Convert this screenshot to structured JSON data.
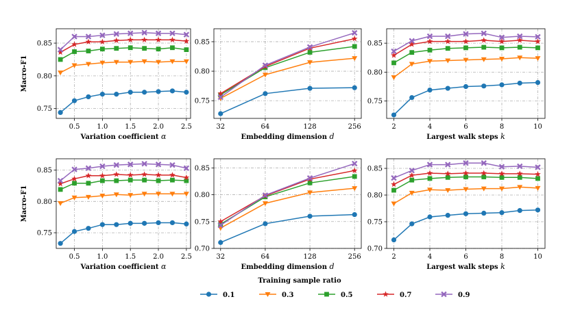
{
  "legend": {
    "title": "Training sample ratio",
    "placement": "bottom-center"
  },
  "series_styles": [
    {
      "name": "0.1",
      "color": "#1f77b4",
      "marker": "circle"
    },
    {
      "name": "0.3",
      "color": "#ff7f0e",
      "marker": "triangle-down"
    },
    {
      "name": "0.5",
      "color": "#2ca02c",
      "marker": "square"
    },
    {
      "name": "0.7",
      "color": "#d62728",
      "marker": "star"
    },
    {
      "name": "0.9",
      "color": "#9467bd",
      "marker": "x"
    }
  ],
  "chart_data": [
    {
      "id": "top-alpha",
      "type": "line",
      "xlabel": "Variation coefficient α",
      "ylabel": "Macro-F1",
      "x": [
        0.25,
        0.5,
        0.75,
        1.0,
        1.25,
        1.5,
        1.75,
        2.0,
        2.25,
        2.5
      ],
      "xlim": [
        0.175,
        2.575
      ],
      "xticks": [
        0.5,
        1.0,
        1.5,
        2.0,
        2.5
      ],
      "xticklabels": [
        "0.5",
        "1.0",
        "1.5",
        "2.0",
        "2.5"
      ],
      "ylim": [
        0.735,
        0.872
      ],
      "yticks": [
        0.75,
        0.8,
        0.85
      ],
      "yticklabels": [
        "0.75",
        "0.80",
        "0.85"
      ],
      "grid": true,
      "series": [
        {
          "name": "0.1",
          "values": [
            0.744,
            0.762,
            0.768,
            0.772,
            0.772,
            0.775,
            0.775,
            0.776,
            0.777,
            0.775
          ]
        },
        {
          "name": "0.3",
          "values": [
            0.805,
            0.816,
            0.818,
            0.82,
            0.821,
            0.821,
            0.822,
            0.821,
            0.822,
            0.822
          ]
        },
        {
          "name": "0.5",
          "values": [
            0.825,
            0.837,
            0.838,
            0.841,
            0.842,
            0.843,
            0.842,
            0.841,
            0.843,
            0.84
          ]
        },
        {
          "name": "0.7",
          "values": [
            0.836,
            0.848,
            0.852,
            0.852,
            0.854,
            0.855,
            0.855,
            0.855,
            0.855,
            0.853
          ]
        },
        {
          "name": "0.9",
          "values": [
            0.84,
            0.86,
            0.86,
            0.862,
            0.864,
            0.865,
            0.866,
            0.865,
            0.865,
            0.863
          ]
        }
      ]
    },
    {
      "id": "top-dim",
      "type": "line",
      "xlabel": "Embedding dimension d",
      "ylabel": "",
      "x": [
        0,
        1,
        2,
        3
      ],
      "xlim": [
        -0.15,
        3.15
      ],
      "xticks": [
        0,
        1,
        2,
        3
      ],
      "xticklabels": [
        "32",
        "64",
        "128",
        "256"
      ],
      "ylim": [
        0.72,
        0.872
      ],
      "yticks": [
        0.75,
        0.8,
        0.85
      ],
      "yticklabels": [
        "0.75",
        "0.80",
        "0.85"
      ],
      "grid": true,
      "series": [
        {
          "name": "0.1",
          "values": [
            0.728,
            0.762,
            0.771,
            0.772
          ]
        },
        {
          "name": "0.3",
          "values": [
            0.754,
            0.794,
            0.815,
            0.822
          ]
        },
        {
          "name": "0.5",
          "values": [
            0.76,
            0.806,
            0.832,
            0.842
          ]
        },
        {
          "name": "0.7",
          "values": [
            0.762,
            0.808,
            0.839,
            0.855
          ]
        },
        {
          "name": "0.9",
          "values": [
            0.756,
            0.81,
            0.841,
            0.865
          ]
        }
      ]
    },
    {
      "id": "top-walk",
      "type": "line",
      "xlabel": "Largest walk steps k",
      "ylabel": "",
      "x": [
        2,
        3,
        4,
        5,
        6,
        7,
        8,
        9,
        10
      ],
      "xlim": [
        1.6,
        10.4
      ],
      "xticks": [
        2,
        4,
        6,
        8,
        10
      ],
      "xticklabels": [
        "2",
        "4",
        "6",
        "8",
        "10"
      ],
      "ylim": [
        0.72,
        0.875
      ],
      "yticks": [
        0.75,
        0.8,
        0.85
      ],
      "yticklabels": [
        "0.75",
        "0.80",
        "0.85"
      ],
      "grid": true,
      "series": [
        {
          "name": "0.1",
          "values": [
            0.726,
            0.756,
            0.769,
            0.772,
            0.775,
            0.776,
            0.778,
            0.781,
            0.782
          ]
        },
        {
          "name": "0.3",
          "values": [
            0.791,
            0.814,
            0.819,
            0.82,
            0.821,
            0.822,
            0.823,
            0.825,
            0.824
          ]
        },
        {
          "name": "0.5",
          "values": [
            0.816,
            0.834,
            0.838,
            0.841,
            0.842,
            0.843,
            0.842,
            0.843,
            0.842
          ]
        },
        {
          "name": "0.7",
          "values": [
            0.829,
            0.848,
            0.853,
            0.853,
            0.853,
            0.855,
            0.853,
            0.855,
            0.853
          ]
        },
        {
          "name": "0.9",
          "values": [
            0.836,
            0.854,
            0.862,
            0.862,
            0.866,
            0.867,
            0.86,
            0.862,
            0.861
          ]
        }
      ]
    },
    {
      "id": "bottom-alpha",
      "type": "line",
      "xlabel": "Variation coefficient α",
      "ylabel": "Macro-F1",
      "x": [
        0.25,
        0.5,
        0.75,
        1.0,
        1.25,
        1.5,
        1.75,
        2.0,
        2.25,
        2.5
      ],
      "xlim": [
        0.175,
        2.575
      ],
      "xticks": [
        0.5,
        1.0,
        1.5,
        2.0,
        2.5
      ],
      "xticklabels": [
        "0.5",
        "1.0",
        "1.5",
        "2.0",
        "2.5"
      ],
      "ylim": [
        0.725,
        0.868
      ],
      "yticks": [
        0.75,
        0.8,
        0.85
      ],
      "yticklabels": [
        "0.75",
        "0.80",
        "0.85"
      ],
      "grid": true,
      "series": [
        {
          "name": "0.1",
          "values": [
            0.733,
            0.752,
            0.757,
            0.763,
            0.763,
            0.765,
            0.765,
            0.766,
            0.766,
            0.764
          ]
        },
        {
          "name": "0.3",
          "values": [
            0.797,
            0.806,
            0.807,
            0.809,
            0.811,
            0.81,
            0.812,
            0.812,
            0.812,
            0.812
          ]
        },
        {
          "name": "0.5",
          "values": [
            0.819,
            0.829,
            0.829,
            0.833,
            0.833,
            0.834,
            0.834,
            0.833,
            0.834,
            0.833
          ]
        },
        {
          "name": "0.7",
          "values": [
            0.828,
            0.836,
            0.841,
            0.841,
            0.843,
            0.842,
            0.843,
            0.842,
            0.842,
            0.838
          ]
        },
        {
          "name": "0.9",
          "values": [
            0.833,
            0.851,
            0.853,
            0.856,
            0.858,
            0.859,
            0.86,
            0.859,
            0.858,
            0.853
          ]
        }
      ]
    },
    {
      "id": "bottom-dim",
      "type": "line",
      "xlabel": "Embedding dimension d",
      "ylabel": "",
      "x": [
        0,
        1,
        2,
        3
      ],
      "xlim": [
        -0.15,
        3.15
      ],
      "xticks": [
        0,
        1,
        2,
        3
      ],
      "xticklabels": [
        "32",
        "64",
        "128",
        "256"
      ],
      "ylim": [
        0.7,
        0.867
      ],
      "yticks": [
        0.7,
        0.75,
        0.8,
        0.85
      ],
      "yticklabels": [
        "0.70",
        "0.75",
        "0.80",
        "0.85"
      ],
      "grid": true,
      "series": [
        {
          "name": "0.1",
          "values": [
            0.711,
            0.746,
            0.76,
            0.763
          ]
        },
        {
          "name": "0.3",
          "values": [
            0.738,
            0.784,
            0.804,
            0.812
          ]
        },
        {
          "name": "0.5",
          "values": [
            0.745,
            0.796,
            0.822,
            0.834
          ]
        },
        {
          "name": "0.7",
          "values": [
            0.75,
            0.798,
            0.829,
            0.845
          ]
        },
        {
          "name": "0.9",
          "values": [
            0.743,
            0.799,
            0.831,
            0.858
          ]
        }
      ]
    },
    {
      "id": "bottom-walk",
      "type": "line",
      "xlabel": "Largest walk steps k",
      "ylabel": "",
      "x": [
        2,
        3,
        4,
        5,
        6,
        7,
        8,
        9,
        10
      ],
      "xlim": [
        1.6,
        10.4
      ],
      "xticks": [
        2,
        4,
        6,
        8,
        10
      ],
      "xticklabels": [
        "2",
        "4",
        "6",
        "8",
        "10"
      ],
      "ylim": [
        0.7,
        0.868
      ],
      "yticks": [
        0.7,
        0.75,
        0.8,
        0.85
      ],
      "yticklabels": [
        "0.70",
        "0.75",
        "0.80",
        "0.85"
      ],
      "grid": true,
      "series": [
        {
          "name": "0.1",
          "values": [
            0.716,
            0.746,
            0.759,
            0.762,
            0.765,
            0.766,
            0.767,
            0.771,
            0.772
          ]
        },
        {
          "name": "0.3",
          "values": [
            0.784,
            0.804,
            0.81,
            0.809,
            0.811,
            0.812,
            0.812,
            0.815,
            0.813
          ]
        },
        {
          "name": "0.5",
          "values": [
            0.809,
            0.828,
            0.831,
            0.833,
            0.834,
            0.834,
            0.833,
            0.833,
            0.831
          ]
        },
        {
          "name": "0.7",
          "values": [
            0.82,
            0.837,
            0.841,
            0.84,
            0.841,
            0.841,
            0.84,
            0.84,
            0.839
          ]
        },
        {
          "name": "0.9",
          "values": [
            0.832,
            0.846,
            0.857,
            0.857,
            0.86,
            0.86,
            0.853,
            0.854,
            0.852
          ]
        }
      ]
    }
  ]
}
